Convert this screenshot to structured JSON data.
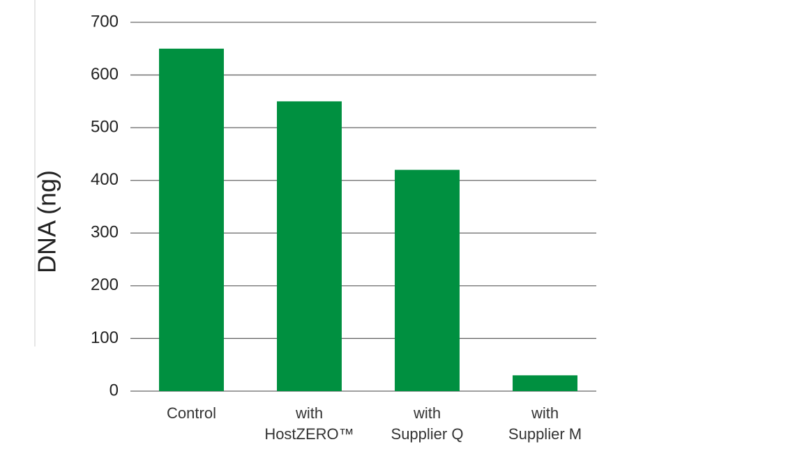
{
  "chart_data": {
    "type": "bar",
    "y_label": "DNA (ng)",
    "categories": [
      [
        "Control"
      ],
      [
        "with",
        "HostZERO™"
      ],
      [
        "with",
        "Supplier Q"
      ],
      [
        "with",
        "Supplier M"
      ]
    ],
    "values": [
      650,
      550,
      420,
      30
    ],
    "color": "#009040",
    "ylim": [
      0,
      700
    ],
    "yticks": [
      0,
      100,
      200,
      300,
      400,
      500,
      600,
      700
    ],
    "grid": true
  }
}
